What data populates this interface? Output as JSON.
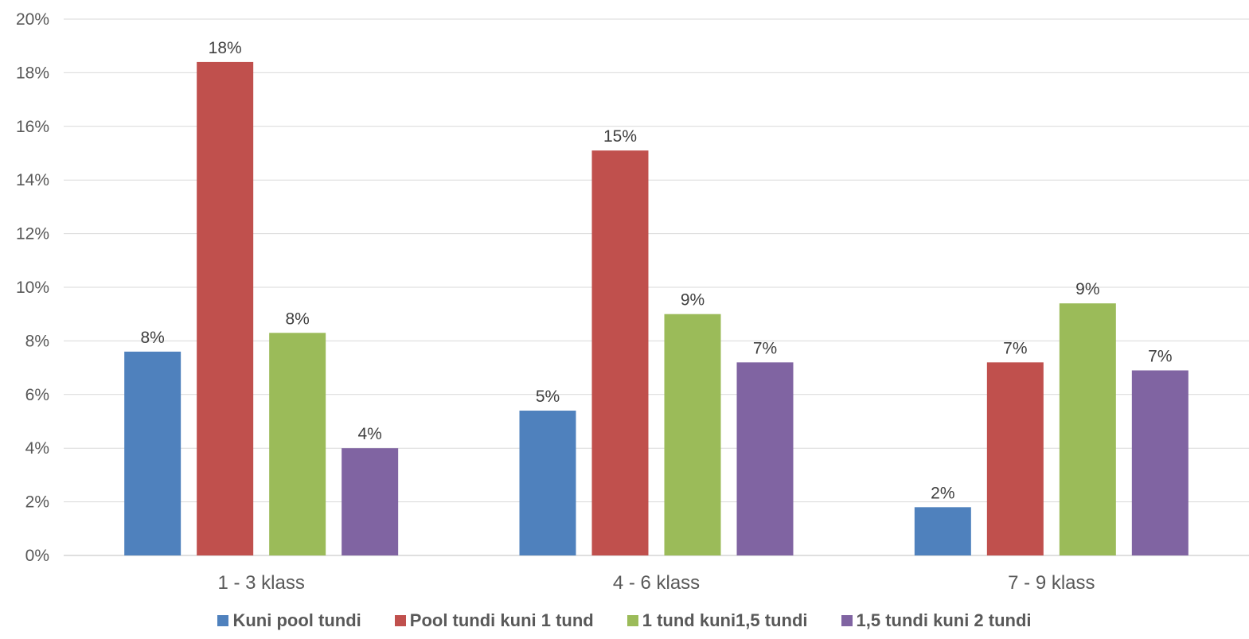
{
  "chart_data": {
    "type": "bar",
    "categories": [
      "1 - 3 klass",
      "4 - 6 klass",
      "7 - 9 klass"
    ],
    "series": [
      {
        "name": "Kuni pool tundi",
        "color": "#4F81BD",
        "values": [
          7.6,
          5.4,
          1.8
        ],
        "labels": [
          "8%",
          "5%",
          "2%"
        ]
      },
      {
        "name": "Pool tundi kuni 1 tund",
        "color": "#C0504D",
        "values": [
          18.4,
          15.1,
          7.2
        ],
        "labels": [
          "18%",
          "15%",
          "7%"
        ]
      },
      {
        "name": "1 tund kuni1,5 tundi",
        "color": "#9BBB59",
        "values": [
          8.3,
          9.0,
          9.4
        ],
        "labels": [
          "8%",
          "9%",
          "9%"
        ]
      },
      {
        "name": "1,5 tundi kuni 2 tundi",
        "color": "#8064A2",
        "values": [
          4.0,
          7.2,
          6.9
        ],
        "labels": [
          "4%",
          "7%",
          "7%"
        ]
      }
    ],
    "ylim": [
      0,
      20
    ],
    "yticks": [
      0,
      2,
      4,
      6,
      8,
      10,
      12,
      14,
      16,
      18,
      20
    ],
    "ytick_labels": [
      "0%",
      "2%",
      "4%",
      "6%",
      "8%",
      "10%",
      "12%",
      "14%",
      "16%",
      "18%",
      "20%"
    ],
    "grid": true,
    "legend_position": "bottom"
  }
}
